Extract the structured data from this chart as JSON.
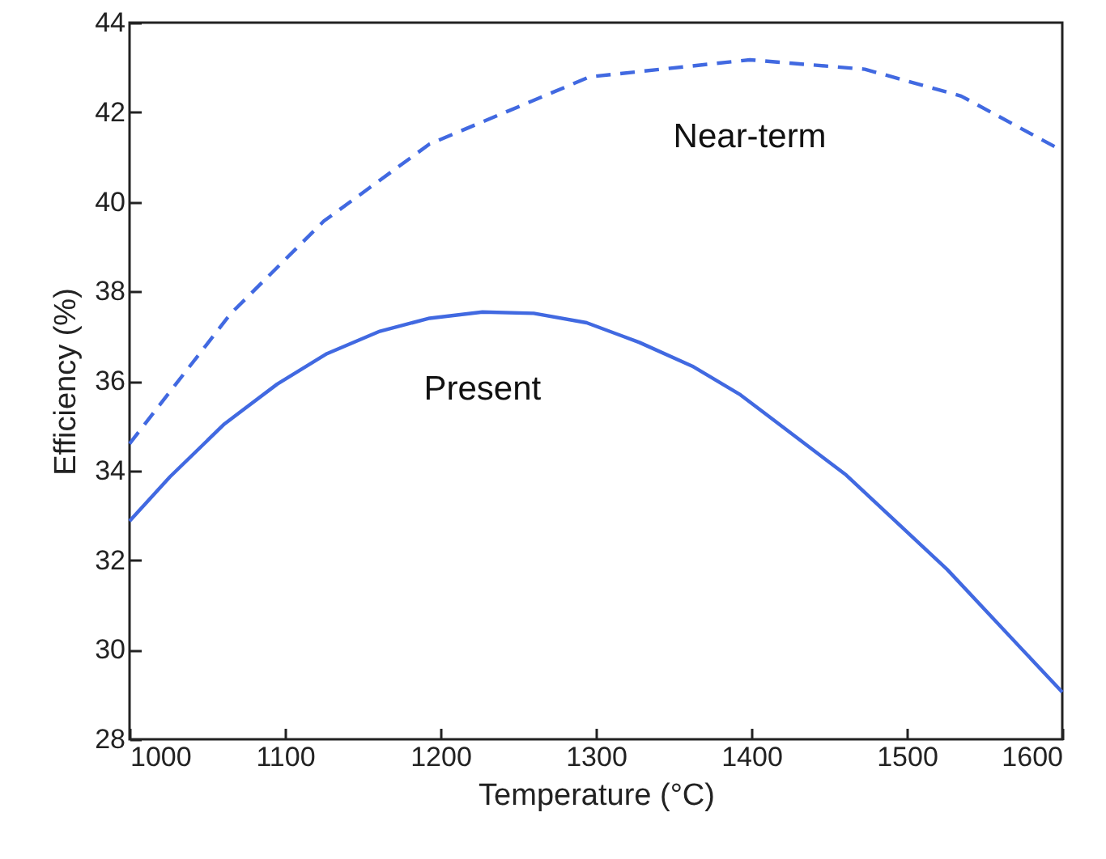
{
  "chart_data": {
    "type": "line",
    "xlabel": "Temperature  (°C)",
    "ylabel": "Efficiency (%)",
    "xlim": [
      1000,
      1600
    ],
    "xticks": [
      1000,
      1100,
      1200,
      1300,
      1400,
      1500,
      1600
    ],
    "ylim": [
      28,
      44
    ],
    "yticks": [
      28,
      30,
      32,
      34,
      36,
      38,
      40,
      42,
      44
    ],
    "grid": false,
    "marker": "none",
    "series": [
      {
        "name": "Present",
        "color": "#4169e1",
        "line_style": "solid",
        "x": [
          1000,
          1026,
          1061,
          1095,
          1127,
          1161,
          1193,
          1227,
          1260,
          1294,
          1328,
          1362,
          1393,
          1461,
          1526,
          1600
        ],
        "values": [
          32.87,
          33.86,
          35.04,
          35.93,
          36.61,
          37.11,
          37.4,
          37.54,
          37.51,
          37.3,
          36.86,
          36.33,
          35.69,
          33.9,
          31.79,
          29.05
        ]
      },
      {
        "name": "Near-term",
        "color": "#4169e1",
        "line_style": "dashed",
        "x": [
          1000,
          1065,
          1125,
          1193,
          1296,
          1399,
          1473,
          1535,
          1600
        ],
        "values": [
          34.6,
          37.5,
          39.57,
          41.29,
          42.79,
          43.17,
          42.96,
          42.36,
          41.14
        ]
      }
    ]
  }
}
